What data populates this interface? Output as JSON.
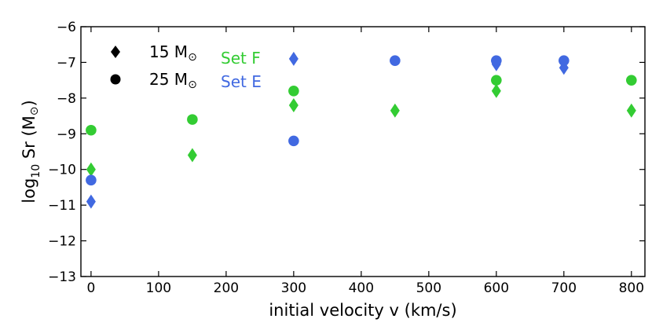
{
  "chart_data": {
    "type": "scatter",
    "xlabel": "initial velocity v (km/s)",
    "ylabel_main": "log",
    "ylabel_sub": "10",
    "ylabel_rest": " Sr (M",
    "ylabel_sun": "⊙",
    "ylabel_close": ")",
    "xlim": [
      -15,
      820
    ],
    "ylim": [
      -13,
      -6
    ],
    "xticks": [
      0,
      100,
      200,
      300,
      400,
      500,
      600,
      700,
      800
    ],
    "yticks": [
      -13,
      -12,
      -11,
      -10,
      -9,
      -8,
      -7,
      -6
    ],
    "xtick_labels": [
      "0",
      "100",
      "200",
      "300",
      "400",
      "500",
      "600",
      "700",
      "800"
    ],
    "ytick_labels": [
      "−13",
      "−12",
      "−11",
      "−10",
      "−9",
      "−8",
      "−7",
      "−6"
    ],
    "colors": {
      "set_f": "#33cc33",
      "set_e": "#4169e1"
    },
    "legend": {
      "markers": [
        {
          "symbol": "diamond",
          "text": "15 M",
          "sun": "⊙"
        },
        {
          "symbol": "circle",
          "text": "25 M",
          "sun": "⊙"
        }
      ],
      "sets": [
        {
          "name": "Set F",
          "color": "#33cc33"
        },
        {
          "name": "Set E",
          "color": "#4169e1"
        }
      ]
    },
    "series": [
      {
        "name": "Set F 15 Msun",
        "set": "set_f",
        "marker": "diamond",
        "points": [
          [
            0,
            -10.0
          ],
          [
            150,
            -9.6
          ],
          [
            300,
            -8.2
          ],
          [
            450,
            -8.35
          ],
          [
            600,
            -7.8
          ],
          [
            800,
            -8.35
          ]
        ]
      },
      {
        "name": "Set F 25 Msun",
        "set": "set_f",
        "marker": "circle",
        "points": [
          [
            0,
            -8.9
          ],
          [
            150,
            -8.6
          ],
          [
            300,
            -7.8
          ],
          [
            600,
            -7.5
          ],
          [
            800,
            -7.5
          ]
        ]
      },
      {
        "name": "Set E 15 Msun",
        "set": "set_e",
        "marker": "diamond",
        "points": [
          [
            0,
            -10.9
          ],
          [
            300,
            -6.9
          ],
          [
            600,
            -7.05
          ],
          [
            700,
            -7.15
          ]
        ]
      },
      {
        "name": "Set E 25 Msun",
        "set": "set_e",
        "marker": "circle",
        "points": [
          [
            0,
            -10.3
          ],
          [
            300,
            -9.2
          ],
          [
            450,
            -6.95
          ],
          [
            600,
            -6.95
          ],
          [
            700,
            -6.95
          ]
        ]
      }
    ]
  }
}
